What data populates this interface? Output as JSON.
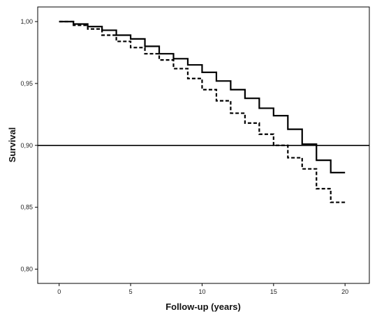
{
  "chart_data": {
    "type": "line",
    "title": "",
    "xlabel": "Follow-up (years)",
    "ylabel": "Survival",
    "xlim": [
      -1.5,
      21.7
    ],
    "ylim": [
      0.7885,
      1.0118
    ],
    "x_ticks": [
      0,
      5,
      10,
      15,
      20
    ],
    "x_tick_labels": [
      "0",
      "5",
      "10",
      "15",
      "20"
    ],
    "y_ticks": [
      0.8,
      0.85,
      0.9,
      0.95,
      1.0
    ],
    "y_tick_labels": [
      "0,80",
      "0,85",
      "0,90",
      "0,95",
      "1,00"
    ],
    "grid": false,
    "legend": "none",
    "reference_line": {
      "y": 0.9,
      "style": "solid"
    },
    "series": [
      {
        "style": "solid",
        "step": true,
        "x": [
          0,
          1,
          2,
          3,
          4,
          5,
          6,
          7,
          8,
          9,
          10,
          11,
          12,
          13,
          14,
          15,
          16,
          17,
          18,
          19,
          20
        ],
        "y": [
          1.0,
          0.998,
          0.996,
          0.993,
          0.989,
          0.986,
          0.98,
          0.974,
          0.97,
          0.965,
          0.959,
          0.952,
          0.945,
          0.938,
          0.93,
          0.924,
          0.913,
          0.901,
          0.888,
          0.878,
          0.878
        ]
      },
      {
        "style": "dashed",
        "step": true,
        "x": [
          0,
          1,
          2,
          3,
          4,
          5,
          6,
          7,
          8,
          9,
          10,
          11,
          12,
          13,
          14,
          15,
          16,
          17,
          18,
          19,
          20
        ],
        "y": [
          1.0,
          0.997,
          0.994,
          0.989,
          0.984,
          0.979,
          0.974,
          0.969,
          0.962,
          0.954,
          0.945,
          0.936,
          0.926,
          0.918,
          0.909,
          0.9,
          0.89,
          0.881,
          0.865,
          0.854,
          0.854
        ]
      }
    ]
  }
}
